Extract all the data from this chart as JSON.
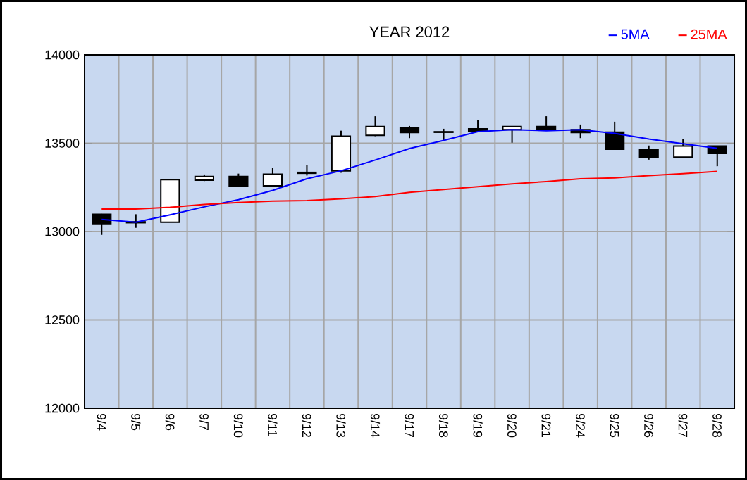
{
  "chart_data": {
    "type": "candlestick",
    "title": "YEAR 2012",
    "categories": [
      "9/4",
      "9/5",
      "9/6",
      "9/7",
      "9/10",
      "9/11",
      "9/12",
      "9/13",
      "9/14",
      "9/17",
      "9/18",
      "9/19",
      "9/20",
      "9/21",
      "9/24",
      "9/25",
      "9/26",
      "9/27",
      "9/28"
    ],
    "ohlc": [
      [
        13098,
        13100,
        12981,
        13045
      ],
      [
        13055,
        13098,
        13021,
        13050
      ],
      [
        13053,
        13294,
        13053,
        13294
      ],
      [
        13291,
        13323,
        13286,
        13312
      ],
      [
        13312,
        13328,
        13259,
        13259
      ],
      [
        13259,
        13360,
        13259,
        13325
      ],
      [
        13335,
        13376,
        13317,
        13330
      ],
      [
        13344,
        13571,
        13333,
        13540
      ],
      [
        13545,
        13653,
        13540,
        13595
      ],
      [
        13590,
        13598,
        13529,
        13561
      ],
      [
        13565,
        13582,
        13516,
        13562
      ],
      [
        13582,
        13630,
        13566,
        13566
      ],
      [
        13577,
        13595,
        13503,
        13595
      ],
      [
        13595,
        13653,
        13574,
        13582
      ],
      [
        13577,
        13606,
        13529,
        13561
      ],
      [
        13563,
        13622,
        13466,
        13466
      ],
      [
        13463,
        13487,
        13407,
        13418
      ],
      [
        13421,
        13526,
        13421,
        13484
      ],
      [
        13484,
        13484,
        13370,
        13442
      ]
    ],
    "series": [
      {
        "name": "5MA",
        "type": "line",
        "color": "#0000ff",
        "values": [
          13069,
          13053,
          13095,
          13140,
          13180,
          13233,
          13299,
          13344,
          13405,
          13470,
          13516,
          13566,
          13577,
          13571,
          13577,
          13556,
          13524,
          13497,
          13471
        ]
      },
      {
        "name": "25MA",
        "type": "line",
        "color": "#ff0000",
        "values": [
          13127,
          13127,
          13137,
          13153,
          13164,
          13172,
          13175,
          13185,
          13198,
          13222,
          13238,
          13254,
          13270,
          13283,
          13299,
          13304,
          13317,
          13328,
          13341
        ]
      }
    ],
    "ylim": [
      12000,
      14000
    ],
    "yticks": [
      12000,
      12500,
      13000,
      13500,
      14000
    ],
    "grid": true,
    "legend": "top right"
  }
}
